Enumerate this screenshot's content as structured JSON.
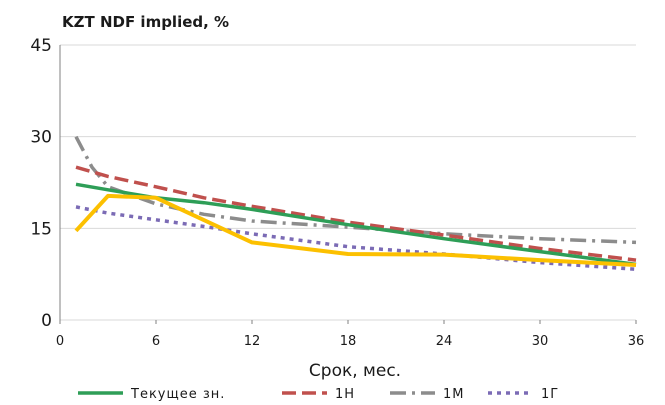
{
  "chart_data": {
    "type": "line",
    "title": "KZT NDF implied, %",
    "xlabel": "Срок, мес.",
    "ylabel": "",
    "xlim": [
      0,
      36
    ],
    "ylim": [
      0,
      45
    ],
    "x_ticks": [
      "0",
      "6",
      "12",
      "18",
      "24",
      "30",
      "36"
    ],
    "y_ticks": [
      "0",
      "15",
      "30",
      "45"
    ],
    "grid": "horizontal",
    "legend_position": "bottom",
    "series": [
      {
        "name": "Текущее зн.",
        "color": "#2e9e57",
        "style": "solid",
        "x": [
          1,
          3,
          6,
          9,
          12,
          18,
          24,
          30,
          36
        ],
        "y": [
          22.2,
          21.3,
          20.0,
          19.2,
          18.1,
          15.6,
          13.3,
          11.2,
          9.1
        ]
      },
      {
        "name": "1Н",
        "color": "#c0504d",
        "style": "dash",
        "x": [
          1,
          3,
          6,
          9,
          12,
          18,
          24,
          30,
          36
        ],
        "y": [
          25.0,
          23.5,
          21.8,
          20.0,
          18.6,
          16.0,
          13.9,
          11.7,
          9.8
        ]
      },
      {
        "name": "1М",
        "color": "#8c8c8c",
        "style": "dashdot",
        "x": [
          1,
          2,
          3,
          6,
          9,
          12,
          18,
          24,
          30,
          36
        ],
        "y": [
          30.0,
          25.0,
          21.8,
          19.0,
          17.3,
          16.2,
          15.2,
          14.1,
          13.3,
          12.7
        ]
      },
      {
        "name": "1Г",
        "color": "#7b6bb5",
        "style": "dot",
        "x": [
          1,
          3,
          6,
          9,
          12,
          18,
          24,
          30,
          36
        ],
        "y": [
          18.5,
          17.5,
          16.4,
          15.3,
          14.1,
          12.0,
          10.8,
          9.4,
          8.3
        ]
      },
      {
        "name": "",
        "color": "#fcc000",
        "style": "solid",
        "x": [
          1,
          3,
          6,
          12,
          18,
          24,
          30,
          36
        ],
        "y": [
          14.6,
          20.3,
          20.0,
          12.7,
          10.8,
          10.7,
          9.8,
          9.0
        ]
      }
    ]
  }
}
